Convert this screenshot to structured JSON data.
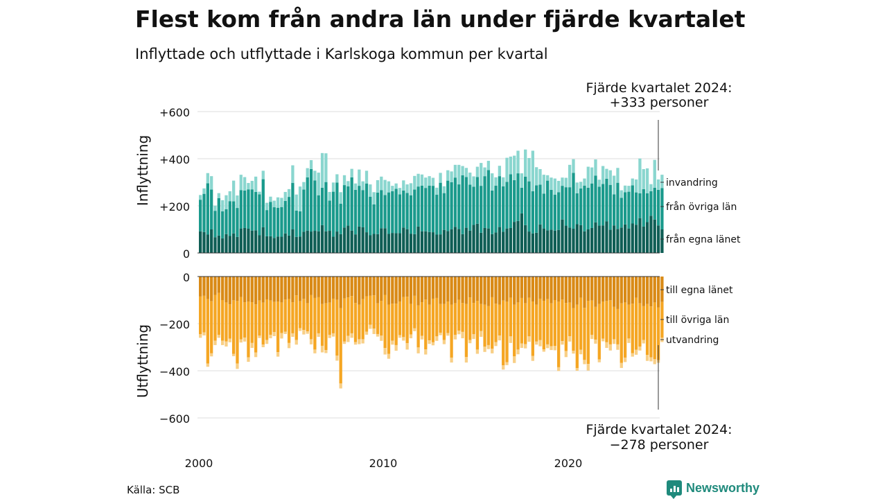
{
  "title": "Flest kom från andra län under fjärde kvartalet",
  "subtitle": "Inflyttade och utflyttade i Karlskoga kommun per kvartal",
  "source": "Källa: SCB",
  "brand": "Newsworthy",
  "colors": {
    "egna_in": "#0f5e55",
    "ovriga_in": "#1a9a8c",
    "invandring": "#8ad6cf",
    "egna_ut": "#d98a16",
    "ovriga_ut": "#f5a623",
    "utvandring": "#f8cf86",
    "grid": "#dddddd"
  },
  "chart_data": [
    {
      "type": "bar",
      "stacked": true,
      "ylabel": "Inflyttning",
      "ylim": [
        0,
        600
      ],
      "yticks": [
        "0",
        "+200",
        "+400",
        "+600"
      ],
      "annotation": [
        "Fjärde kvartalet 2024:",
        "+333 personer"
      ],
      "legend": [
        "invandring",
        "från övriga län",
        "från egna länet"
      ],
      "x_start": "2000 Q1",
      "xticks": [
        "2000",
        "2010",
        "2020"
      ],
      "series": [
        {
          "name": "från egna länet",
          "values": [
            92,
            89,
            78,
            100,
            67,
            74,
            62,
            80,
            72,
            83,
            68,
            104,
            106,
            103,
            95,
            96,
            75,
            109,
            71,
            71,
            64,
            70,
            69,
            83,
            74,
            100,
            68,
            70,
            90,
            95,
            91,
            94,
            92,
            118,
            92,
            94,
            69,
            91,
            80,
            108,
            116,
            95,
            79,
            112,
            109,
            88,
            75,
            81,
            80,
            105,
            105,
            81,
            85,
            84,
            84,
            108,
            101,
            82,
            80,
            112,
            92,
            92,
            89,
            88,
            78,
            79,
            98,
            93,
            101,
            111,
            102,
            80,
            107,
            95,
            119,
            124,
            86,
            106,
            104,
            80,
            87,
            110,
            90,
            104,
            106,
            132,
            136,
            168,
            118,
            91,
            83,
            86,
            121,
            104,
            96,
            99,
            95,
            98,
            142,
            116,
            108,
            103,
            122,
            118,
            92,
            100,
            106,
            130,
            116,
            117,
            134,
            99,
            117,
            102,
            108,
            121,
            104,
            125,
            120,
            148,
            112,
            131,
            158,
            142,
            117,
            100
          ]
        },
        {
          "name": "från övriga län",
          "values": [
            134,
            162,
            218,
            169,
            112,
            159,
            115,
            106,
            148,
            136,
            123,
            163,
            159,
            167,
            175,
            163,
            174,
            204,
            111,
            146,
            130,
            122,
            126,
            138,
            164,
            197,
            112,
            107,
            179,
            226,
            265,
            214,
            153,
            159,
            209,
            128,
            191,
            208,
            129,
            180,
            167,
            226,
            189,
            173,
            158,
            207,
            164,
            125,
            176,
            162,
            141,
            176,
            177,
            188,
            165,
            157,
            154,
            163,
            189,
            170,
            194,
            184,
            197,
            197,
            169,
            219,
            156,
            214,
            199,
            209,
            189,
            250,
            215,
            195,
            162,
            198,
            199,
            220,
            248,
            185,
            199,
            216,
            193,
            198,
            228,
            177,
            202,
            109,
            206,
            213,
            179,
            201,
            169,
            148,
            211,
            169,
            152,
            160,
            143,
            163,
            171,
            237,
            131,
            156,
            194,
            177,
            189,
            198,
            165,
            176,
            181,
            190,
            132,
            196,
            126,
            137,
            156,
            162,
            137,
            105,
            159,
            122,
            104,
            135,
            151,
            175
          ]
        },
        {
          "name": "invandring",
          "values": [
            20,
            23,
            43,
            57,
            22,
            21,
            47,
            59,
            42,
            88,
            53,
            65,
            57,
            27,
            36,
            65,
            11,
            36,
            31,
            22,
            28,
            44,
            39,
            38,
            33,
            75,
            68,
            105,
            32,
            39,
            38,
            41,
            96,
            147,
            122,
            37,
            39,
            35,
            49,
            42,
            22,
            36,
            27,
            69,
            37,
            54,
            52,
            52,
            53,
            57,
            64,
            47,
            23,
            23,
            27,
            43,
            36,
            51,
            58,
            54,
            47,
            44,
            40,
            34,
            30,
            42,
            29,
            44,
            46,
            54,
            83,
            39,
            39,
            51,
            44,
            44,
            97,
            37,
            39,
            73,
            35,
            44,
            38,
            102,
            75,
            104,
            96,
            61,
            115,
            99,
            172,
            77,
            66,
            80,
            23,
            52,
            69,
            48,
            35,
            40,
            95,
            58,
            46,
            28,
            30,
            89,
            68,
            69,
            30,
            76,
            42,
            62,
            79,
            63,
            32,
            28,
            25,
            29,
            55,
            148,
            85,
            106,
            30,
            118,
            44,
            57
          ]
        }
      ]
    },
    {
      "type": "bar",
      "stacked": true,
      "ylabel": "Utflyttning",
      "ylim": [
        -600,
        0
      ],
      "yticks": [
        "0",
        "−200",
        "−400",
        "−600"
      ],
      "annotation": [
        "Fjärde kvartalet 2024:",
        "−278 personer"
      ],
      "legend": [
        "till egna länet",
        "till övriga län",
        "utvandring"
      ],
      "x_start": "2000 Q1",
      "xticks": [
        "2000",
        "2010",
        "2020"
      ],
      "series": [
        {
          "name": "till egna länet",
          "values": [
            -85,
            -82,
            -96,
            -105,
            -78,
            -70,
            -100,
            -110,
            -118,
            -101,
            -104,
            -87,
            -109,
            -106,
            -109,
            -118,
            -102,
            -111,
            -97,
            -102,
            -108,
            -106,
            -110,
            -98,
            -96,
            -109,
            -80,
            -105,
            -95,
            -113,
            -79,
            -91,
            -88,
            -117,
            -113,
            -111,
            -94,
            -99,
            -134,
            -93,
            -89,
            -83,
            -112,
            -120,
            -96,
            -84,
            -82,
            -80,
            -114,
            -103,
            -78,
            -119,
            -115,
            -115,
            -106,
            -87,
            -86,
            -116,
            -82,
            -123,
            -109,
            -98,
            -120,
            -94,
            -91,
            -117,
            -117,
            -106,
            -119,
            -113,
            -99,
            -112,
            -117,
            -89,
            -112,
            -103,
            -117,
            -120,
            -126,
            -88,
            -115,
            -119,
            -102,
            -107,
            -90,
            -120,
            -110,
            -91,
            -113,
            -90,
            -106,
            -120,
            -94,
            -103,
            -96,
            -114,
            -100,
            -107,
            -98,
            -112,
            -111,
            -134,
            -120,
            -90,
            -133,
            -103,
            -102,
            -129,
            -117,
            -107,
            -104,
            -101,
            -129,
            -138,
            -114,
            -110,
            -120,
            -115,
            -90,
            -114,
            -126,
            -117,
            -127,
            -110,
            -131,
            -108
          ]
        },
        {
          "name": "till övriga län",
          "values": [
            -160,
            -155,
            -273,
            -221,
            -194,
            -178,
            -172,
            -165,
            -146,
            -227,
            -265,
            -180,
            -150,
            -237,
            -173,
            -204,
            -149,
            -178,
            -172,
            -145,
            -128,
            -215,
            -130,
            -136,
            -186,
            -132,
            -189,
            -114,
            -132,
            -120,
            -187,
            -219,
            -153,
            -177,
            -199,
            -137,
            -147,
            -237,
            -320,
            -183,
            -163,
            -158,
            -166,
            -146,
            -170,
            -150,
            -123,
            -141,
            -130,
            -148,
            -225,
            -209,
            -157,
            -176,
            -143,
            -170,
            -197,
            -130,
            -138,
            -178,
            -143,
            -211,
            -151,
            -185,
            -163,
            -122,
            -152,
            -134,
            -225,
            -135,
            -131,
            -123,
            -225,
            -180,
            -133,
            -207,
            -114,
            -178,
            -165,
            -218,
            -163,
            -131,
            -275,
            -257,
            -164,
            -219,
            -200,
            -193,
            -174,
            -164,
            -231,
            -156,
            -176,
            -206,
            -192,
            -182,
            -195,
            -278,
            -176,
            -204,
            -142,
            -181,
            -269,
            -221,
            -221,
            -268,
            -146,
            -139,
            -235,
            -157,
            -175,
            -187,
            -137,
            -150,
            -253,
            -234,
            -143,
            -210,
            -221,
            -183,
            -143,
            -216,
            -216,
            -241,
            -224,
            -152
          ]
        },
        {
          "name": "utvandring",
          "values": [
            -15,
            -13,
            -14,
            -13,
            -19,
            -12,
            -19,
            -22,
            -15,
            -10,
            -23,
            -13,
            -17,
            -19,
            -21,
            -20,
            -10,
            -11,
            -17,
            -15,
            -17,
            -19,
            -23,
            -10,
            -22,
            -15,
            -20,
            -12,
            -19,
            -10,
            -22,
            -16,
            -15,
            -28,
            -13,
            -13,
            -14,
            -21,
            -21,
            -10,
            -26,
            -19,
            -11,
            -21,
            -18,
            -13,
            -17,
            -23,
            -11,
            -22,
            -28,
            -21,
            -17,
            -24,
            -11,
            -15,
            -27,
            -16,
            -12,
            -25,
            -15,
            -22,
            -15,
            -13,
            -19,
            -10,
            -18,
            -11,
            -21,
            -19,
            -15,
            -27,
            -23,
            -14,
            -20,
            -18,
            -25,
            -22,
            -17,
            -20,
            -17,
            -21,
            -18,
            -12,
            -28,
            -28,
            -20,
            -19,
            -18,
            -23,
            -21,
            -13,
            -26,
            -10,
            -16,
            -16,
            -18,
            -16,
            -15,
            -26,
            -23,
            -12,
            -11,
            -19,
            -18,
            -28,
            -17,
            -17,
            -12,
            -11,
            -24,
            -26,
            -20,
            -23,
            -21,
            -19,
            -19,
            -15,
            -21,
            -17,
            -15,
            -25,
            -17,
            -21,
            -11,
            -18
          ]
        }
      ]
    }
  ]
}
